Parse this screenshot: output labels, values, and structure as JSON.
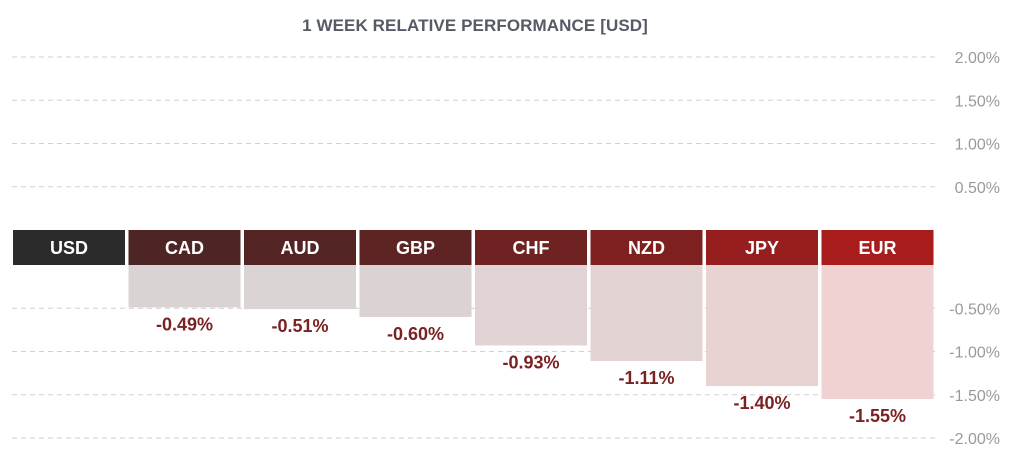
{
  "chart_data": {
    "type": "bar",
    "title": "1 WEEK RELATIVE PERFORMANCE  [USD]",
    "categories": [
      "USD",
      "CAD",
      "AUD",
      "GBP",
      "CHF",
      "NZD",
      "JPY",
      "EUR"
    ],
    "values": [
      0.0,
      -0.49,
      -0.51,
      -0.6,
      -0.93,
      -1.11,
      -1.4,
      -1.55
    ],
    "value_labels": [
      "",
      "-0.49%",
      "-0.51%",
      "-0.60%",
      "-0.93%",
      "-1.11%",
      "-1.40%",
      "-1.55%"
    ],
    "ylim": [
      -2.0,
      2.0
    ],
    "y_ticks": [
      {
        "value": 2.0,
        "label": "2.00%"
      },
      {
        "value": 1.5,
        "label": "1.50%"
      },
      {
        "value": 1.0,
        "label": "1.00%"
      },
      {
        "value": 0.5,
        "label": "0.50%"
      },
      {
        "value": -0.5,
        "label": "-0.50%"
      },
      {
        "value": -1.0,
        "label": "-1.00%"
      },
      {
        "value": -1.5,
        "label": "-1.50%"
      },
      {
        "value": -2.0,
        "label": "-2.00%"
      }
    ],
    "grid": true,
    "header_colors": [
      "#2b2b2b",
      "#4e2525",
      "#542424",
      "#5e2323",
      "#6e2222",
      "#7e2020",
      "#961e1e",
      "#a81c1c"
    ],
    "bar_colors": [
      "#d9d3d3",
      "#dad4d4",
      "#dbd2d2",
      "#e1d3d3",
      "#e4d3d3",
      "#e9d2d2",
      "#f0d2d2"
    ],
    "value_label_color": "#7a2222",
    "tick_label_color": "#9a9a9a",
    "grid_color": "#cfcfcf"
  }
}
